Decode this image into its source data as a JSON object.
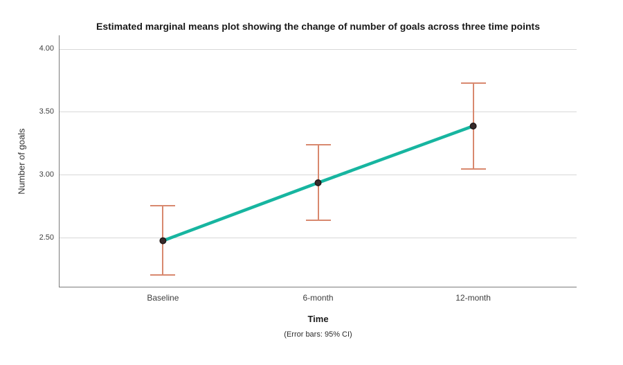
{
  "chart_data": {
    "type": "line",
    "title": "Estimated marginal means plot showing the change of number of goals across three time points",
    "xlabel": "Time",
    "ylabel": "Number of goals",
    "footnote": "(Error bars: 95% CI)",
    "categories": [
      "Baseline",
      "6-month",
      "12-month"
    ],
    "values": [
      2.48,
      2.94,
      3.39
    ],
    "error_bars": {
      "type": "95% CI",
      "lower": [
        2.21,
        2.64,
        3.05
      ],
      "upper": [
        2.76,
        3.24,
        3.73
      ]
    },
    "yticks": [
      2.5,
      3.0,
      3.5,
      4.0
    ],
    "ytick_labels": [
      "2.50",
      "3.00",
      "3.50",
      "4.00"
    ],
    "ylim": [
      2.115,
      4.11
    ],
    "grid": true,
    "legend": false,
    "colors": {
      "line": "#17b5a0",
      "error_bar": "#d8886e",
      "marker": "#382b2b",
      "marker_edge": "#1f1717",
      "gridline": "#d8d8d8",
      "axis": "#7a7a7a"
    }
  }
}
